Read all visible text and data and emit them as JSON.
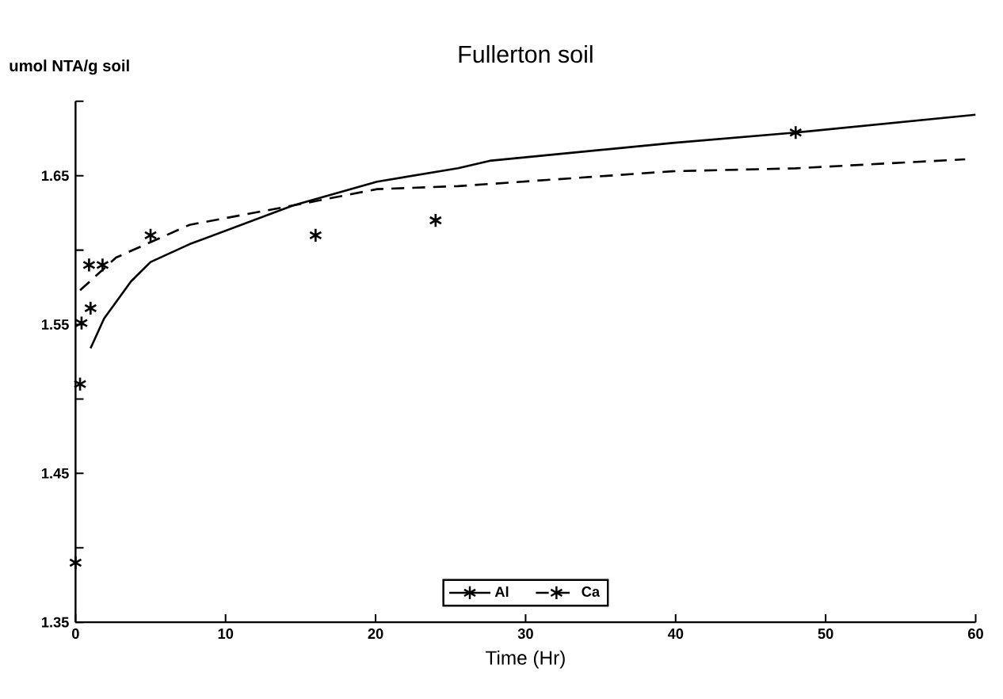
{
  "chart_data": {
    "type": "line",
    "title": "Fullerton soil",
    "xlabel": "Time (Hr)",
    "ylabel": "umol NTA/g soil",
    "xlim": [
      0,
      60
    ],
    "xticks": [
      0,
      10,
      20,
      30,
      40,
      50,
      60
    ],
    "ylim": [
      1.35,
      1.7
    ],
    "yticks": [
      1.35,
      {
        "value": 1.4,
        "label": null
      },
      1.45,
      {
        "value": 1.5,
        "label": null
      },
      1.55,
      {
        "value": 1.6,
        "label": null
      },
      1.65,
      {
        "value": 1.7,
        "label": null
      }
    ],
    "legend": "bottom",
    "grid": false,
    "series": [
      {
        "type": "scatter",
        "marker": "cross",
        "color": "#000000",
        "x": [
          0,
          0.3,
          0.4,
          0.9,
          1.0,
          1.8,
          5,
          16,
          24,
          48
        ],
        "values": [
          1.39,
          1.51,
          1.551,
          1.59,
          1.561,
          1.59,
          1.61,
          1.61,
          1.62,
          1.679
        ]
      },
      {
        "name": "Al",
        "line_style": "solid",
        "color": "#000000",
        "x": [
          1.0,
          1.9,
          3.7,
          5,
          7.6,
          14.5,
          20.1,
          25.5,
          27.6,
          39.8,
          48,
          60
        ],
        "values": [
          1.534,
          1.554,
          1.579,
          1.592,
          1.604,
          1.63,
          1.646,
          1.655,
          1.66,
          1.672,
          1.679,
          1.691
        ]
      },
      {
        "name": "Ca",
        "line_style": "dashed",
        "color": "#000000",
        "x": [
          0.3,
          2.7,
          7.6,
          14.5,
          20.1,
          25.5,
          39.8,
          48,
          59.3
        ],
        "values": [
          1.573,
          1.595,
          1.617,
          1.63,
          1.641,
          1.643,
          1.653,
          1.655,
          1.661
        ]
      }
    ]
  }
}
